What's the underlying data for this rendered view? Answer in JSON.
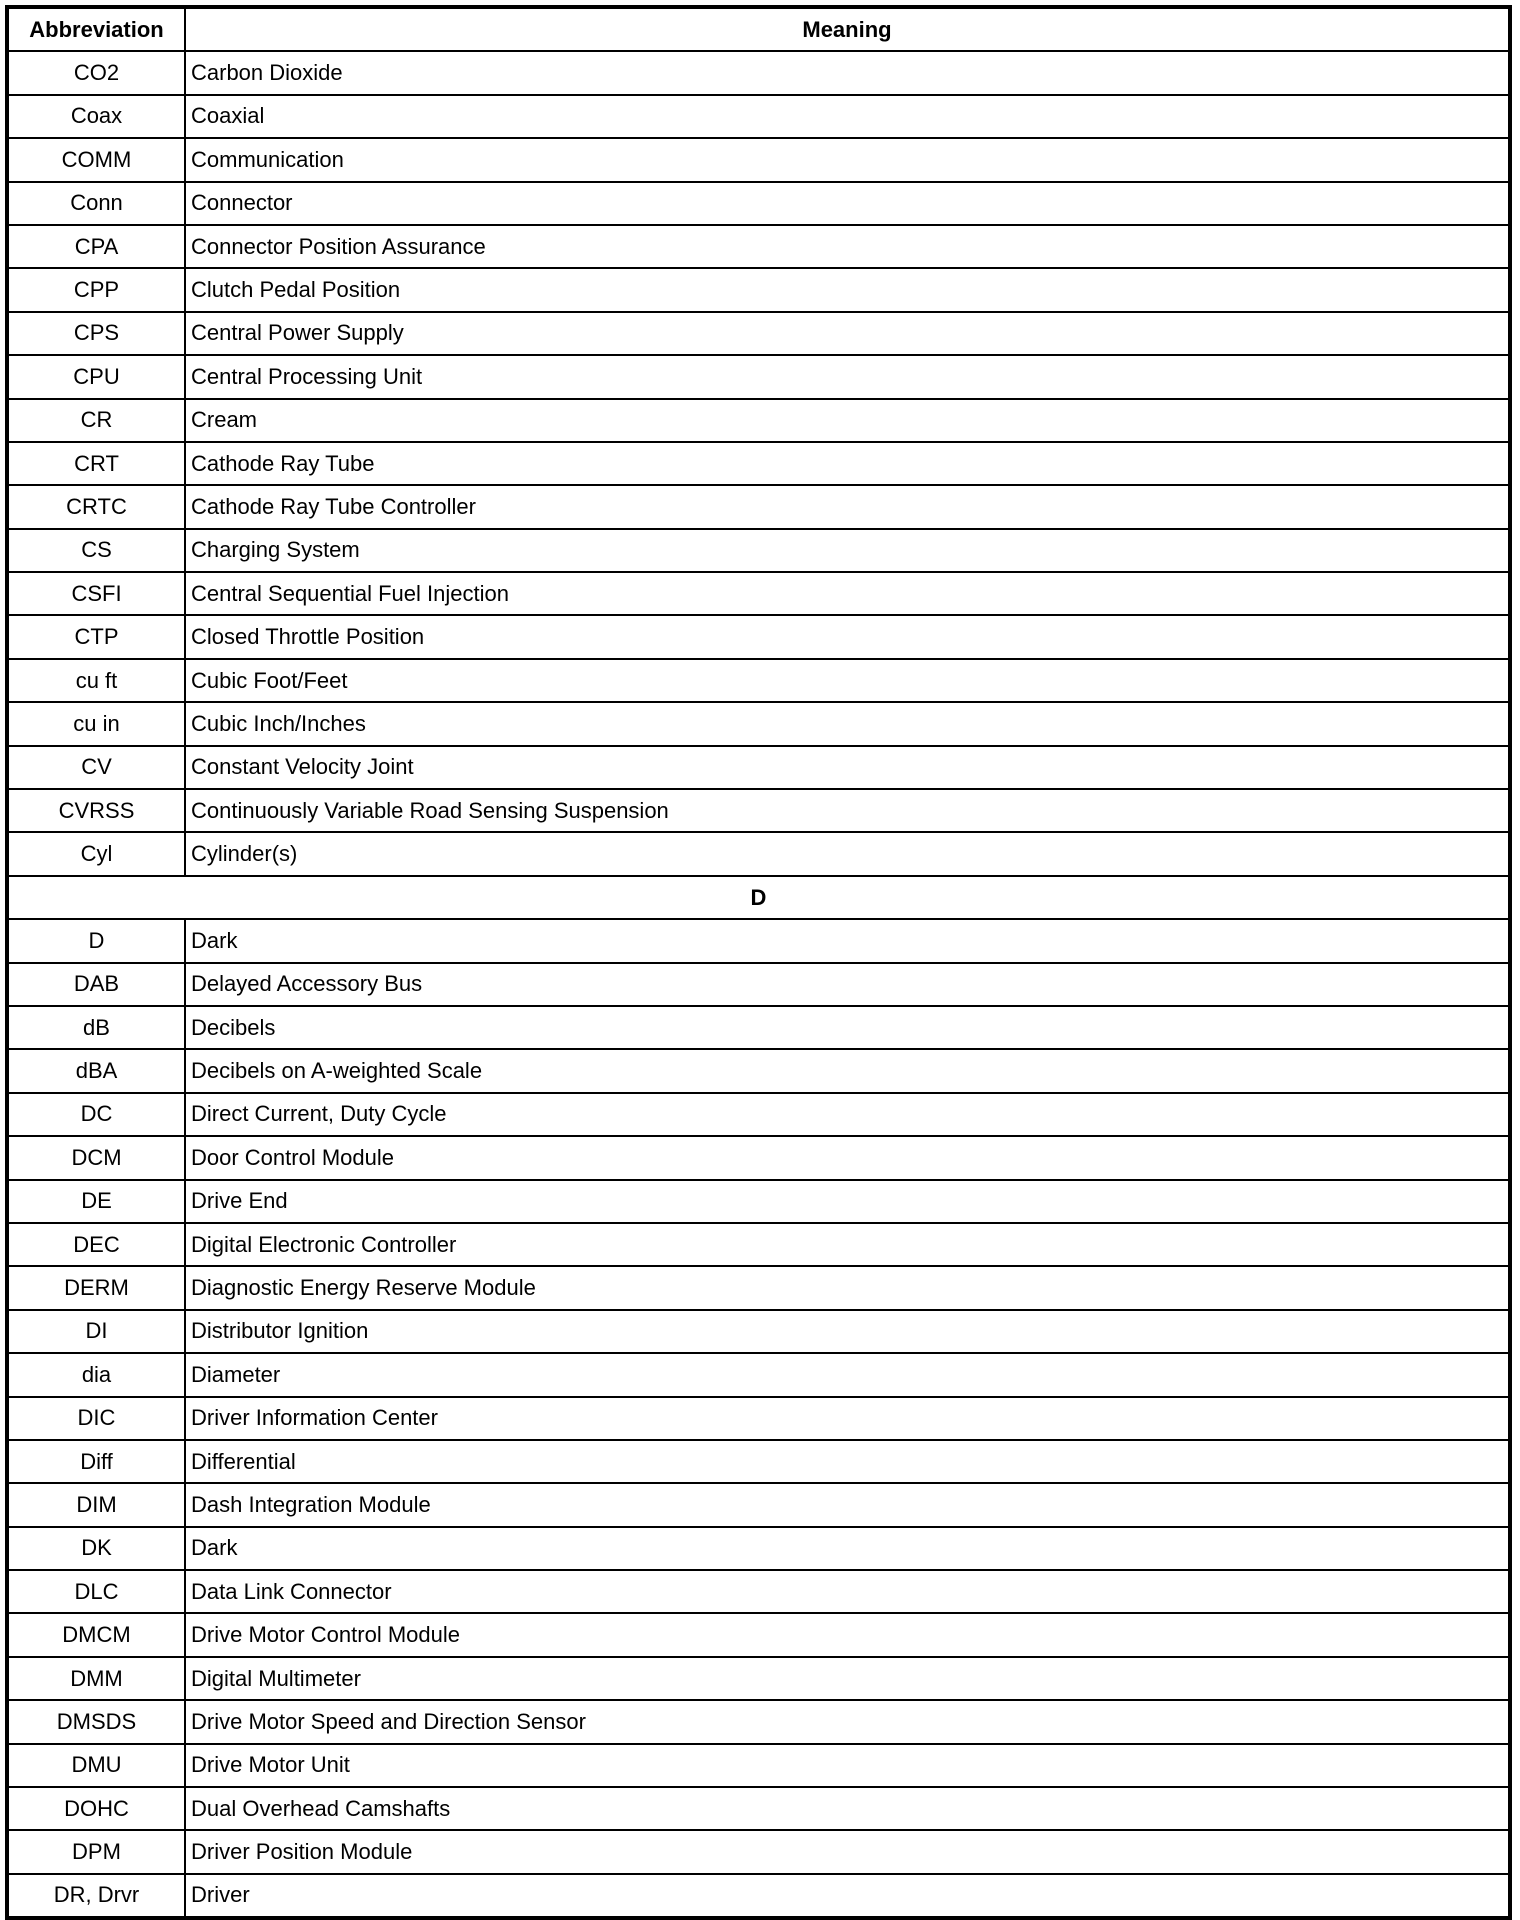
{
  "header": {
    "abbreviation": "Abbreviation",
    "meaning": "Meaning"
  },
  "rows": [
    {
      "abbr": "CO2",
      "meaning": "Carbon Dioxide"
    },
    {
      "abbr": "Coax",
      "meaning": "Coaxial"
    },
    {
      "abbr": "COMM",
      "meaning": "Communication"
    },
    {
      "abbr": "Conn",
      "meaning": "Connector"
    },
    {
      "abbr": "CPA",
      "meaning": "Connector Position Assurance"
    },
    {
      "abbr": "CPP",
      "meaning": "Clutch Pedal Position"
    },
    {
      "abbr": "CPS",
      "meaning": "Central Power Supply"
    },
    {
      "abbr": "CPU",
      "meaning": "Central Processing Unit"
    },
    {
      "abbr": "CR",
      "meaning": "Cream"
    },
    {
      "abbr": "CRT",
      "meaning": "Cathode Ray Tube"
    },
    {
      "abbr": "CRTC",
      "meaning": "Cathode Ray Tube Controller"
    },
    {
      "abbr": "CS",
      "meaning": "Charging System"
    },
    {
      "abbr": "CSFI",
      "meaning": "Central Sequential Fuel Injection"
    },
    {
      "abbr": "CTP",
      "meaning": "Closed Throttle Position"
    },
    {
      "abbr": "cu ft",
      "meaning": "Cubic Foot/Feet"
    },
    {
      "abbr": "cu in",
      "meaning": "Cubic Inch/Inches"
    },
    {
      "abbr": "CV",
      "meaning": "Constant Velocity Joint"
    },
    {
      "abbr": "CVRSS",
      "meaning": "Continuously Variable Road Sensing Suspension"
    },
    {
      "abbr": "Cyl",
      "meaning": "Cylinder(s)"
    },
    {
      "section": "D"
    },
    {
      "abbr": "D",
      "meaning": "Dark"
    },
    {
      "abbr": "DAB",
      "meaning": "Delayed Accessory Bus"
    },
    {
      "abbr": "dB",
      "meaning": "Decibels"
    },
    {
      "abbr": "dBA",
      "meaning": "Decibels on A-weighted Scale"
    },
    {
      "abbr": "DC",
      "meaning": "Direct Current, Duty Cycle"
    },
    {
      "abbr": "DCM",
      "meaning": "Door Control Module"
    },
    {
      "abbr": "DE",
      "meaning": "Drive End"
    },
    {
      "abbr": "DEC",
      "meaning": "Digital Electronic Controller"
    },
    {
      "abbr": "DERM",
      "meaning": "Diagnostic Energy Reserve Module"
    },
    {
      "abbr": "DI",
      "meaning": "Distributor Ignition"
    },
    {
      "abbr": "dia",
      "meaning": "Diameter"
    },
    {
      "abbr": "DIC",
      "meaning": "Driver Information Center"
    },
    {
      "abbr": "Diff",
      "meaning": "Differential"
    },
    {
      "abbr": "DIM",
      "meaning": "Dash Integration Module"
    },
    {
      "abbr": "DK",
      "meaning": "Dark"
    },
    {
      "abbr": "DLC",
      "meaning": "Data Link Connector"
    },
    {
      "abbr": "DMCM",
      "meaning": "Drive Motor Control Module"
    },
    {
      "abbr": "DMM",
      "meaning": "Digital Multimeter"
    },
    {
      "abbr": "DMSDS",
      "meaning": "Drive Motor Speed and Direction Sensor"
    },
    {
      "abbr": "DMU",
      "meaning": "Drive Motor Unit"
    },
    {
      "abbr": "DOHC",
      "meaning": "Dual Overhead Camshafts"
    },
    {
      "abbr": "DPM",
      "meaning": "Driver Position Module"
    },
    {
      "abbr": "DR, Drvr",
      "meaning": "Driver"
    }
  ]
}
